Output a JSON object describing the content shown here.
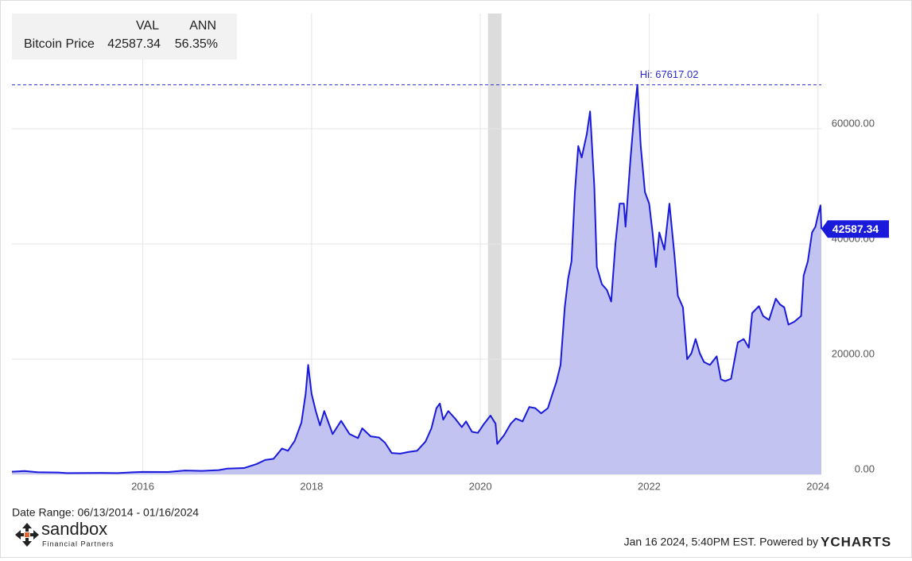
{
  "chart_data": {
    "type": "area",
    "legend": {
      "col_val": "VAL",
      "col_ann": "ANN",
      "ann": "56.35%"
    },
    "hi": 67617.02,
    "hi_label": "Hi: 67617.02",
    "date_range": "Date Range: 06/13/2014 - 01/16/2024",
    "brand": "sandbox",
    "brand_sub": "Financial Partners",
    "footer": "Jan 16 2024, 5:40PM EST. Powered by",
    "footer_logo": "YCHARTS",
    "shaded_range": [
      2020.09,
      2020.25
    ],
    "xlim": [
      2014.45,
      2024.04
    ],
    "xticks": [
      2016,
      2018,
      2020,
      2022,
      2024
    ],
    "ylim": [
      0,
      80000
    ],
    "yticks": [
      {
        "value": 0,
        "label": "0.00"
      },
      {
        "value": 20000,
        "label": "20000.00"
      },
      {
        "value": 40000,
        "label": "40000.00"
      },
      {
        "value": 60000,
        "label": "60000.00"
      }
    ],
    "grid": true,
    "x": [
      2014.45,
      2014.6,
      2014.75,
      2014.9,
      2015.0,
      2015.1,
      2015.3,
      2015.5,
      2015.7,
      2015.9,
      2016.0,
      2016.3,
      2016.5,
      2016.7,
      2016.9,
      2017.0,
      2017.2,
      2017.35,
      2017.45,
      2017.55,
      2017.65,
      2017.72,
      2017.8,
      2017.88,
      2017.93,
      2017.96,
      2018.0,
      2018.05,
      2018.1,
      2018.15,
      2018.25,
      2018.35,
      2018.45,
      2018.55,
      2018.6,
      2018.7,
      2018.8,
      2018.87,
      2018.95,
      2019.05,
      2019.15,
      2019.25,
      2019.35,
      2019.42,
      2019.48,
      2019.52,
      2019.56,
      2019.62,
      2019.7,
      2019.78,
      2019.83,
      2019.9,
      2019.97,
      2020.04,
      2020.12,
      2020.18,
      2020.2,
      2020.28,
      2020.36,
      2020.42,
      2020.5,
      2020.58,
      2020.65,
      2020.72,
      2020.8,
      2020.85,
      2020.9,
      2020.95,
      2021.0,
      2021.04,
      2021.08,
      2021.12,
      2021.16,
      2021.2,
      2021.26,
      2021.3,
      2021.35,
      2021.38,
      2021.44,
      2021.5,
      2021.55,
      2021.6,
      2021.65,
      2021.7,
      2021.72,
      2021.78,
      2021.82,
      2021.86,
      2021.9,
      2021.95,
      2022.0,
      2022.04,
      2022.08,
      2022.12,
      2022.18,
      2022.24,
      2022.3,
      2022.34,
      2022.4,
      2022.45,
      2022.5,
      2022.55,
      2022.6,
      2022.65,
      2022.72,
      2022.8,
      2022.85,
      2022.9,
      2022.97,
      2023.05,
      2023.12,
      2023.18,
      2023.22,
      2023.3,
      2023.35,
      2023.42,
      2023.5,
      2023.55,
      2023.6,
      2023.65,
      2023.72,
      2023.8,
      2023.83,
      2023.88,
      2023.93,
      2023.97,
      2024.0,
      2024.03,
      2024.04
    ],
    "series": [
      {
        "name": "Bitcoin Price",
        "color": "#1a1adb",
        "fill": "#c3c3f2",
        "values": [
          460,
          590,
          380,
          350,
          320,
          230,
          240,
          260,
          230,
          380,
          430,
          420,
          680,
          610,
          740,
          1000,
          1100,
          1800,
          2500,
          2700,
          4500,
          4100,
          5800,
          9000,
          14000,
          19000,
          14000,
          11000,
          8500,
          11000,
          7000,
          9300,
          7000,
          6300,
          8000,
          6600,
          6400,
          5500,
          3700,
          3600,
          3900,
          4100,
          5700,
          8000,
          11500,
          12300,
          9500,
          11000,
          9700,
          8200,
          9200,
          7400,
          7200,
          8700,
          10200,
          8800,
          5300,
          6800,
          8800,
          9700,
          9200,
          11700,
          11500,
          10600,
          11500,
          13800,
          16000,
          19000,
          29000,
          34000,
          37000,
          49000,
          57000,
          55000,
          59000,
          63000,
          50000,
          36000,
          33000,
          32000,
          30000,
          40000,
          47000,
          47000,
          43000,
          55000,
          62000,
          67617.02,
          57000,
          49000,
          47000,
          42000,
          36000,
          42000,
          39000,
          47000,
          38000,
          31000,
          29000,
          20000,
          21000,
          23500,
          21000,
          19500,
          19000,
          20500,
          16500,
          16200,
          16600,
          22900,
          23500,
          22000,
          28000,
          29200,
          27500,
          26800,
          30500,
          29500,
          29000,
          26000,
          26500,
          27500,
          34500,
          37000,
          42000,
          43000,
          45000,
          46700,
          42587.34
        ]
      }
    ]
  }
}
